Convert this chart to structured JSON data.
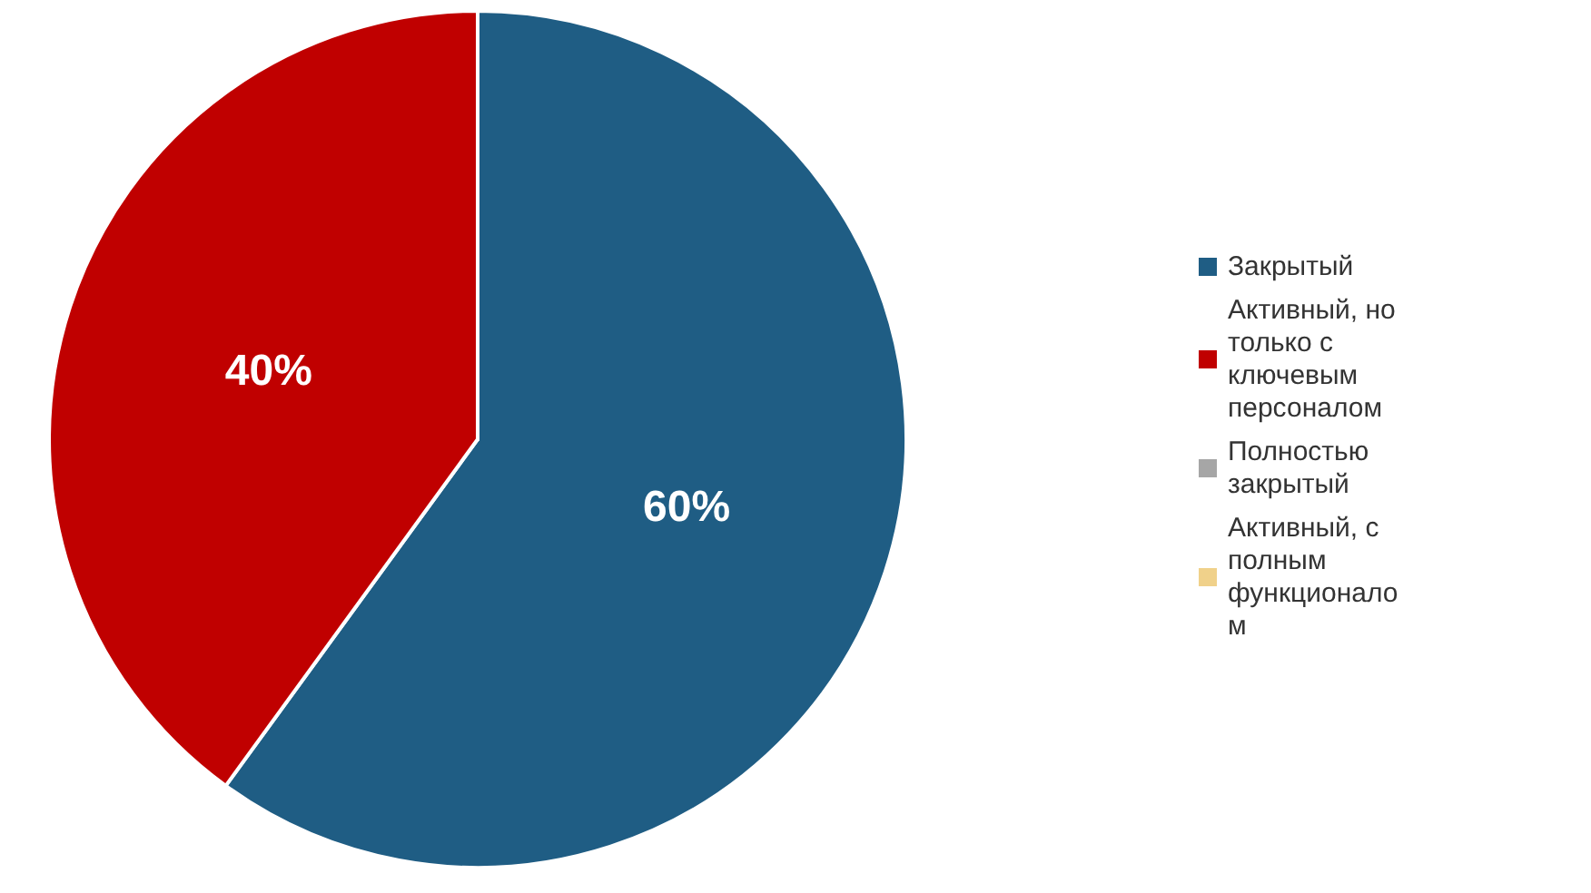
{
  "chart_data": {
    "type": "pie",
    "categories": [
      "Закрытый",
      "Активный, но только с ключевым персоналом",
      "Полностью закрытый",
      "Активный, с полным функционалом"
    ],
    "values": [
      60,
      40,
      0,
      0
    ],
    "colors": [
      "#1f5d84",
      "#c00000",
      "#a6a6a6",
      "#f0d18a"
    ],
    "value_labels": [
      "60%",
      "40%",
      null,
      null
    ],
    "legend": "right"
  }
}
